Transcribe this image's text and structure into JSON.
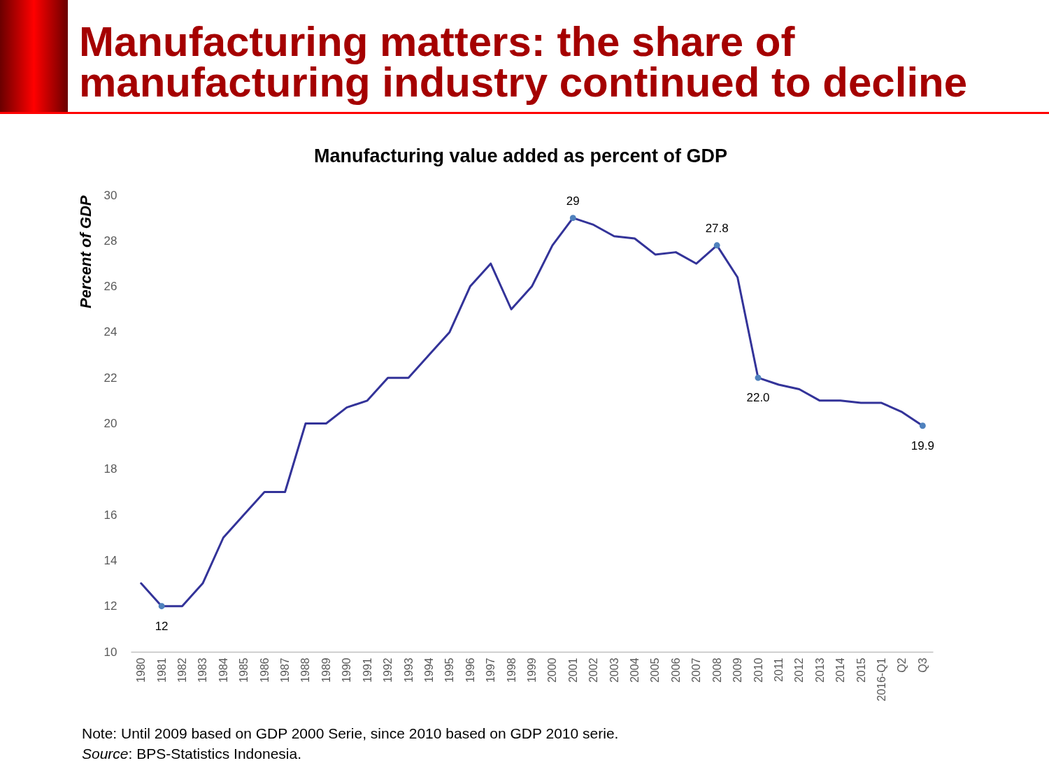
{
  "chart_data": {
    "type": "line",
    "title": "Manufacturing matters: the share of manufacturing industry continued to decline",
    "subtitle": "Manufacturing value added as percent of GDP",
    "ylabel": "Percent of GDP",
    "categories": [
      "1980",
      "1981",
      "1982",
      "1983",
      "1984",
      "1985",
      "1986",
      "1987",
      "1988",
      "1989",
      "1990",
      "1991",
      "1992",
      "1993",
      "1994",
      "1995",
      "1996",
      "1997",
      "1998",
      "1999",
      "2000",
      "2001",
      "2002",
      "2003",
      "2004",
      "2005",
      "2006",
      "2007",
      "2008",
      "2009",
      "2010",
      "2011",
      "2012",
      "2013",
      "2014",
      "2015",
      "2016-Q1",
      "Q2",
      "Q3"
    ],
    "series": [
      {
        "color": "#333399",
        "values": [
          13,
          12,
          12,
          13,
          15,
          16,
          17,
          17,
          20,
          20,
          20.7,
          21,
          22,
          22,
          23,
          24,
          26,
          27,
          25,
          26,
          27.8,
          29,
          28.7,
          28.2,
          28.1,
          27.4,
          27.5,
          27.0,
          27.8,
          26.4,
          22.0,
          21.7,
          21.5,
          21.0,
          21.0,
          20.9,
          20.9,
          20.5,
          19.9
        ]
      },
      {
        "type": "scatter",
        "marker": "circle",
        "color": "#4f81bd",
        "values": [
          null,
          12,
          null,
          null,
          null,
          null,
          null,
          null,
          null,
          null,
          null,
          null,
          null,
          null,
          null,
          null,
          null,
          null,
          null,
          null,
          null,
          29,
          null,
          null,
          null,
          null,
          null,
          null,
          27.8,
          null,
          22.0,
          null,
          null,
          null,
          null,
          null,
          null,
          null,
          19.9
        ],
        "value_labels": [
          null,
          "12",
          null,
          null,
          null,
          null,
          null,
          null,
          null,
          null,
          null,
          null,
          null,
          null,
          null,
          null,
          null,
          null,
          null,
          null,
          null,
          "29",
          null,
          null,
          null,
          null,
          null,
          null,
          "27.8",
          null,
          "22.0",
          null,
          null,
          null,
          null,
          null,
          null,
          null,
          "19.9"
        ]
      }
    ],
    "ylim": [
      10,
      30
    ],
    "yticks": [
      10,
      12,
      14,
      16,
      18,
      20,
      22,
      24,
      26,
      28,
      30
    ],
    "annotations": [
      "Note: Until 2009 based on GDP 2000 Serie, since 2010 based on GDP 2010 serie.",
      "Source: BPS-Statistics Indonesia."
    ]
  }
}
